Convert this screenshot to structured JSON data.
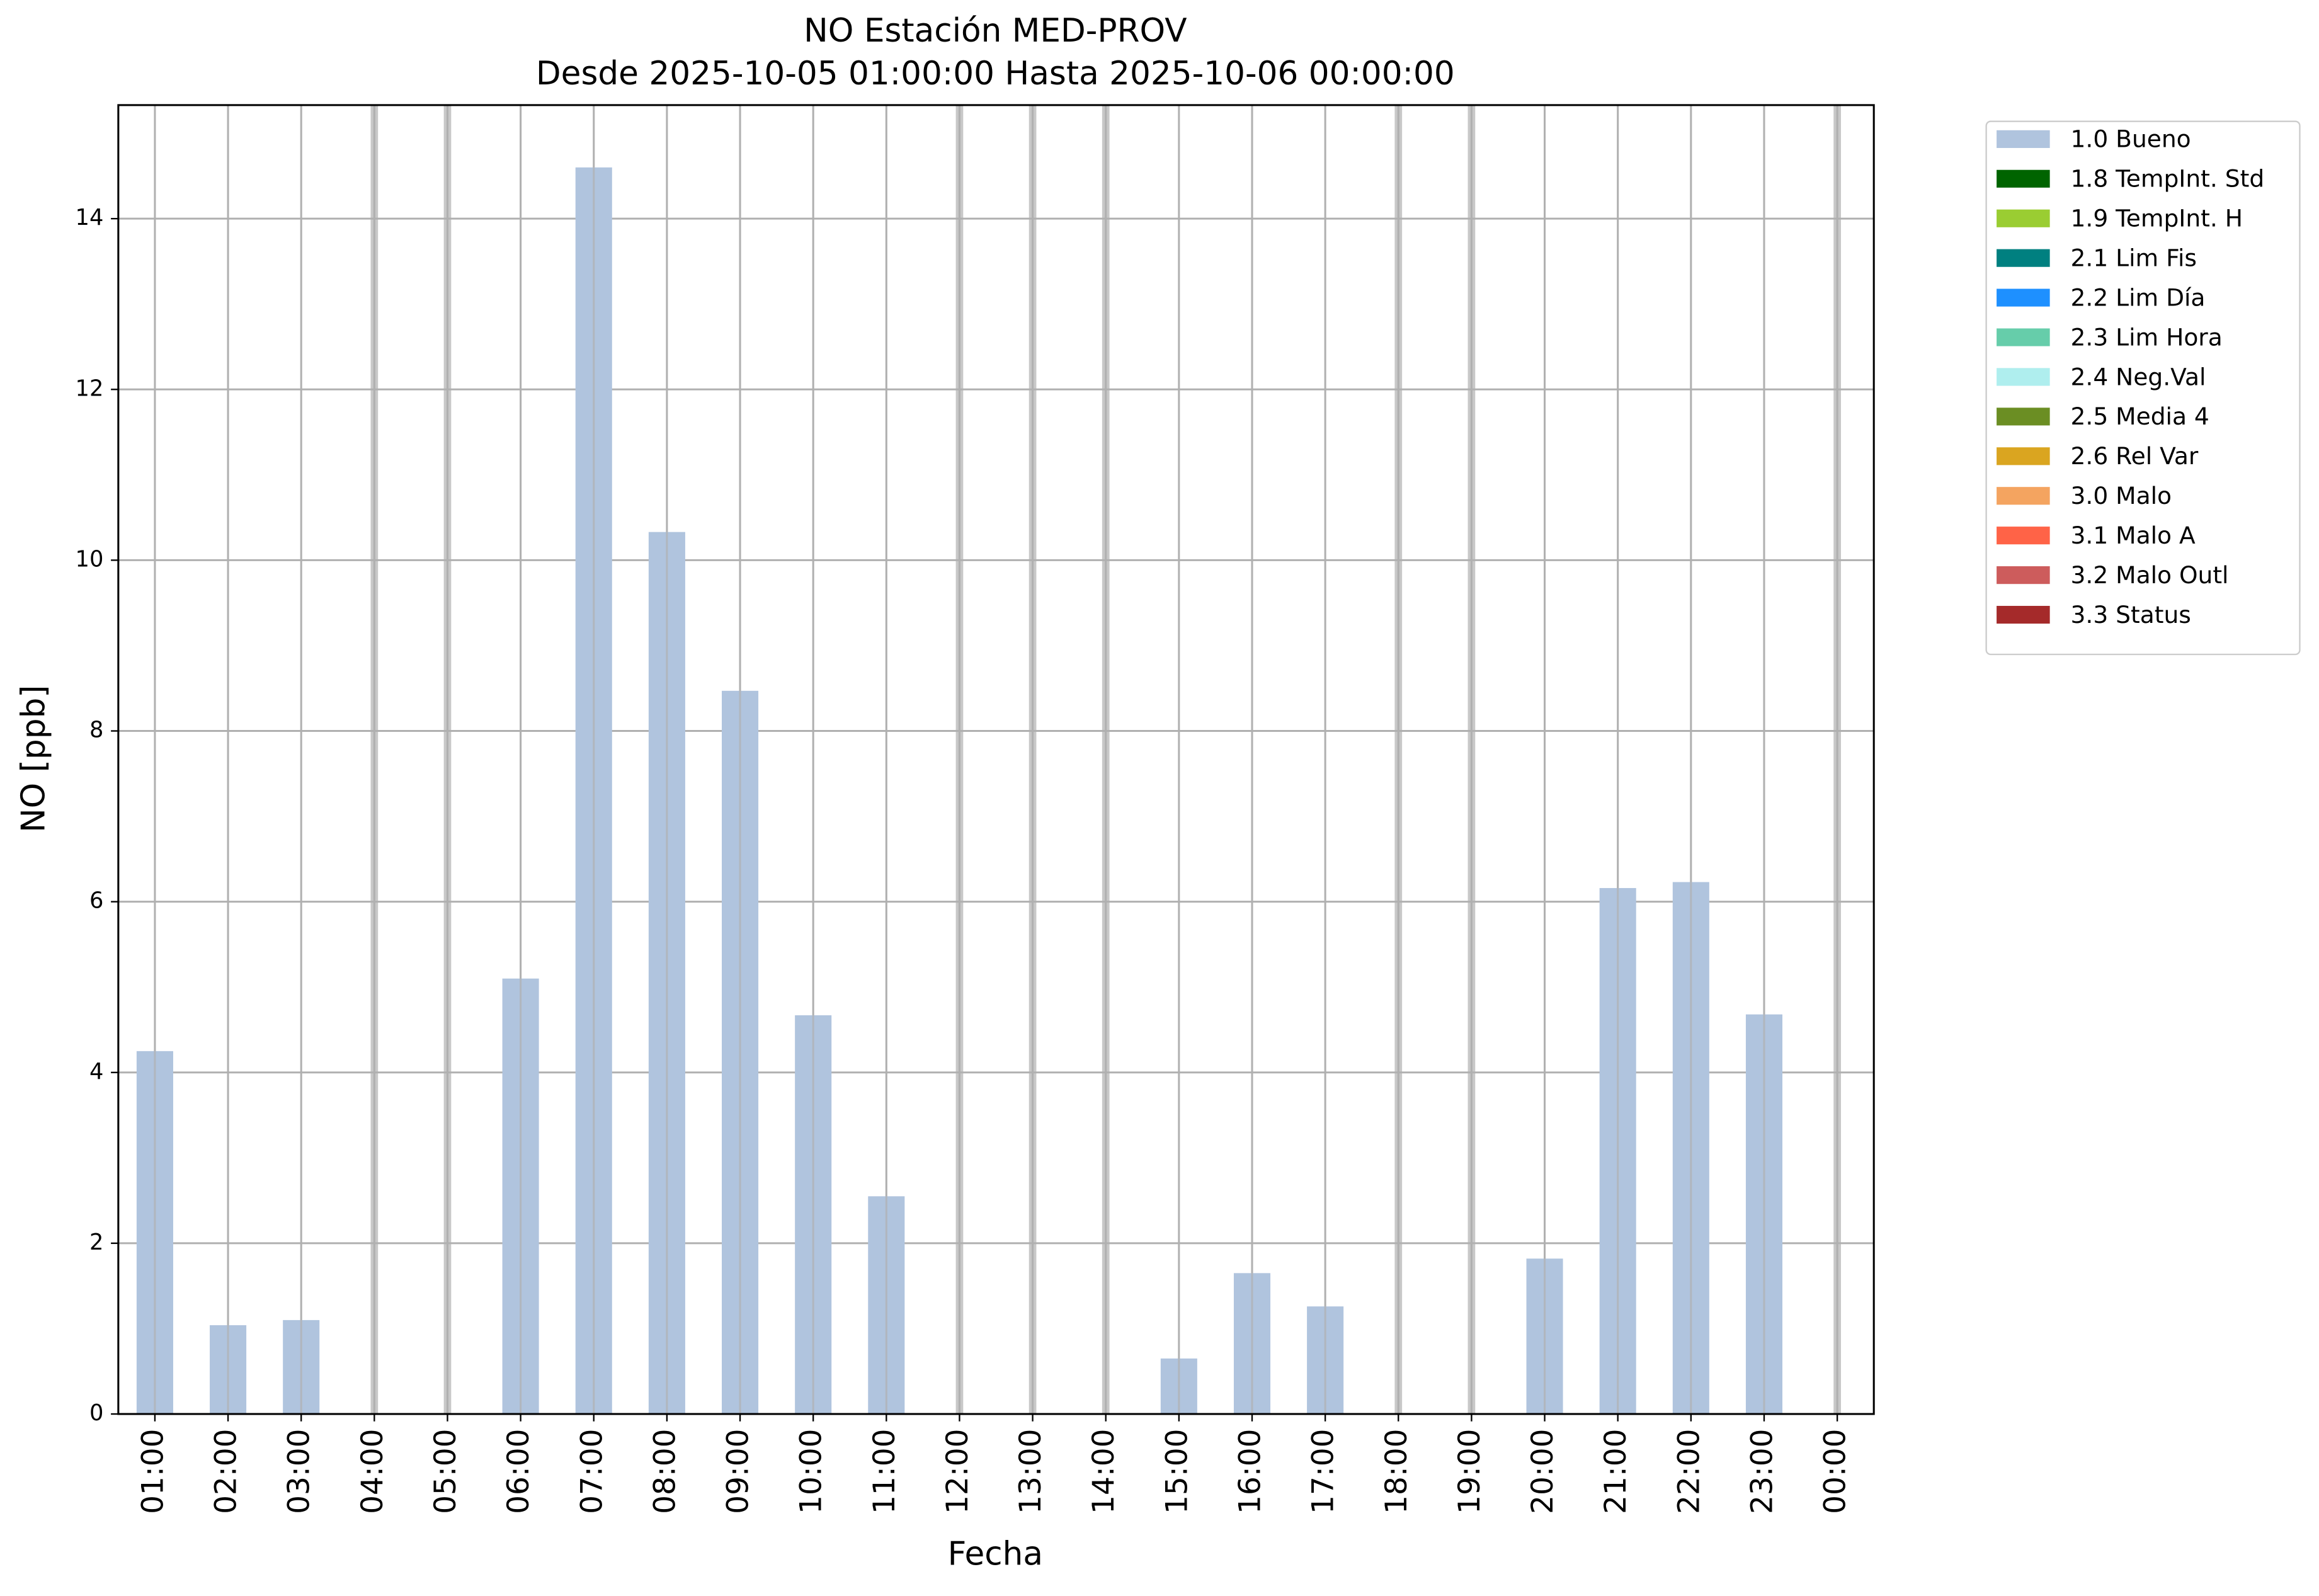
{
  "chart_data": {
    "type": "bar",
    "title": "NO Estación MED-PROV",
    "subtitle": "Desde 2025-10-05 01:00:00 Hasta 2025-10-06 00:00:00",
    "x_label": "Fecha",
    "y_label": "NO [ppb]",
    "categories": [
      "01:00",
      "02:00",
      "03:00",
      "04:00",
      "05:00",
      "06:00",
      "07:00",
      "08:00",
      "09:00",
      "10:00",
      "11:00",
      "12:00",
      "13:00",
      "14:00",
      "15:00",
      "16:00",
      "17:00",
      "18:00",
      "19:00",
      "20:00",
      "21:00",
      "22:00",
      "23:00",
      "00:00"
    ],
    "series": [
      {
        "name": "1.0 Bueno",
        "color": "#b0c4de",
        "values": [
          4.25,
          1.04,
          1.1,
          null,
          null,
          5.1,
          14.6,
          10.33,
          8.47,
          4.67,
          2.55,
          null,
          null,
          null,
          0.65,
          1.65,
          1.26,
          null,
          null,
          1.82,
          6.16,
          6.23,
          4.68,
          null
        ]
      },
      {
        "name": "1.8 TempInt. Std",
        "color": "#006400",
        "values": [
          null,
          null,
          null,
          null,
          null,
          null,
          null,
          null,
          null,
          null,
          null,
          null,
          null,
          null,
          null,
          null,
          null,
          null,
          null,
          null,
          null,
          null,
          null,
          null
        ]
      },
      {
        "name": "1.9 TempInt. H",
        "color": "#9acd32",
        "values": [
          null,
          null,
          null,
          null,
          null,
          null,
          null,
          null,
          null,
          null,
          null,
          null,
          null,
          null,
          null,
          null,
          null,
          null,
          null,
          null,
          null,
          null,
          null,
          null
        ]
      },
      {
        "name": "2.1 Lim Fis",
        "color": "#008080",
        "values": [
          null,
          null,
          null,
          null,
          null,
          null,
          null,
          null,
          null,
          null,
          null,
          null,
          null,
          null,
          null,
          null,
          null,
          null,
          null,
          null,
          null,
          null,
          null,
          null
        ]
      },
      {
        "name": "2.2 Lim Día",
        "color": "#1e90ff",
        "values": [
          null,
          null,
          null,
          null,
          null,
          null,
          null,
          null,
          null,
          null,
          null,
          null,
          null,
          null,
          null,
          null,
          null,
          null,
          null,
          null,
          null,
          null,
          null,
          null
        ]
      },
      {
        "name": "2.3 Lim Hora",
        "color": "#66cdaa",
        "values": [
          null,
          null,
          null,
          null,
          null,
          null,
          null,
          null,
          null,
          null,
          null,
          null,
          null,
          null,
          null,
          null,
          null,
          null,
          null,
          null,
          null,
          null,
          null,
          null
        ]
      },
      {
        "name": "2.4 Neg.Val",
        "color": "#afeeee",
        "values": [
          null,
          null,
          null,
          null,
          null,
          null,
          null,
          null,
          null,
          null,
          null,
          null,
          null,
          null,
          null,
          null,
          null,
          null,
          null,
          null,
          null,
          null,
          null,
          null
        ]
      },
      {
        "name": "2.5 Media 4",
        "color": "#6b8e23",
        "values": [
          null,
          null,
          null,
          null,
          null,
          null,
          null,
          null,
          null,
          null,
          null,
          null,
          null,
          null,
          null,
          null,
          null,
          null,
          null,
          null,
          null,
          null,
          null,
          null
        ]
      },
      {
        "name": "2.6 Rel Var",
        "color": "#daa520",
        "values": [
          null,
          null,
          null,
          null,
          null,
          null,
          null,
          null,
          null,
          null,
          null,
          null,
          null,
          null,
          null,
          null,
          null,
          null,
          null,
          null,
          null,
          null,
          null,
          null
        ]
      },
      {
        "name": "3.0 Malo",
        "color": "#f4a460",
        "values": [
          null,
          null,
          null,
          null,
          null,
          null,
          null,
          null,
          null,
          null,
          null,
          null,
          null,
          null,
          null,
          null,
          null,
          null,
          null,
          null,
          null,
          null,
          null,
          null
        ]
      },
      {
        "name": "3.1 Malo A",
        "color": "#ff6347",
        "values": [
          null,
          null,
          null,
          null,
          null,
          null,
          null,
          null,
          null,
          null,
          null,
          null,
          null,
          null,
          null,
          null,
          null,
          null,
          null,
          null,
          null,
          null,
          null,
          null
        ]
      },
      {
        "name": "3.2 Malo Outl",
        "color": "#cd5c5c",
        "values": [
          null,
          null,
          null,
          null,
          null,
          null,
          null,
          null,
          null,
          null,
          null,
          null,
          null,
          null,
          null,
          null,
          null,
          null,
          null,
          null,
          null,
          null,
          null,
          null
        ]
      },
      {
        "name": "3.3 Status",
        "color": "#a52a2a",
        "values": [
          null,
          null,
          null,
          null,
          null,
          null,
          null,
          null,
          null,
          null,
          null,
          null,
          null,
          null,
          null,
          null,
          null,
          null,
          null,
          null,
          null,
          null,
          null,
          null
        ]
      }
    ],
    "missing_color": "#c8c8c8",
    "ylim": [
      0,
      15.33
    ],
    "yticks": [
      0,
      2,
      4,
      6,
      8,
      10,
      12,
      14
    ],
    "grid": true,
    "legend": "outside-upper-right"
  }
}
